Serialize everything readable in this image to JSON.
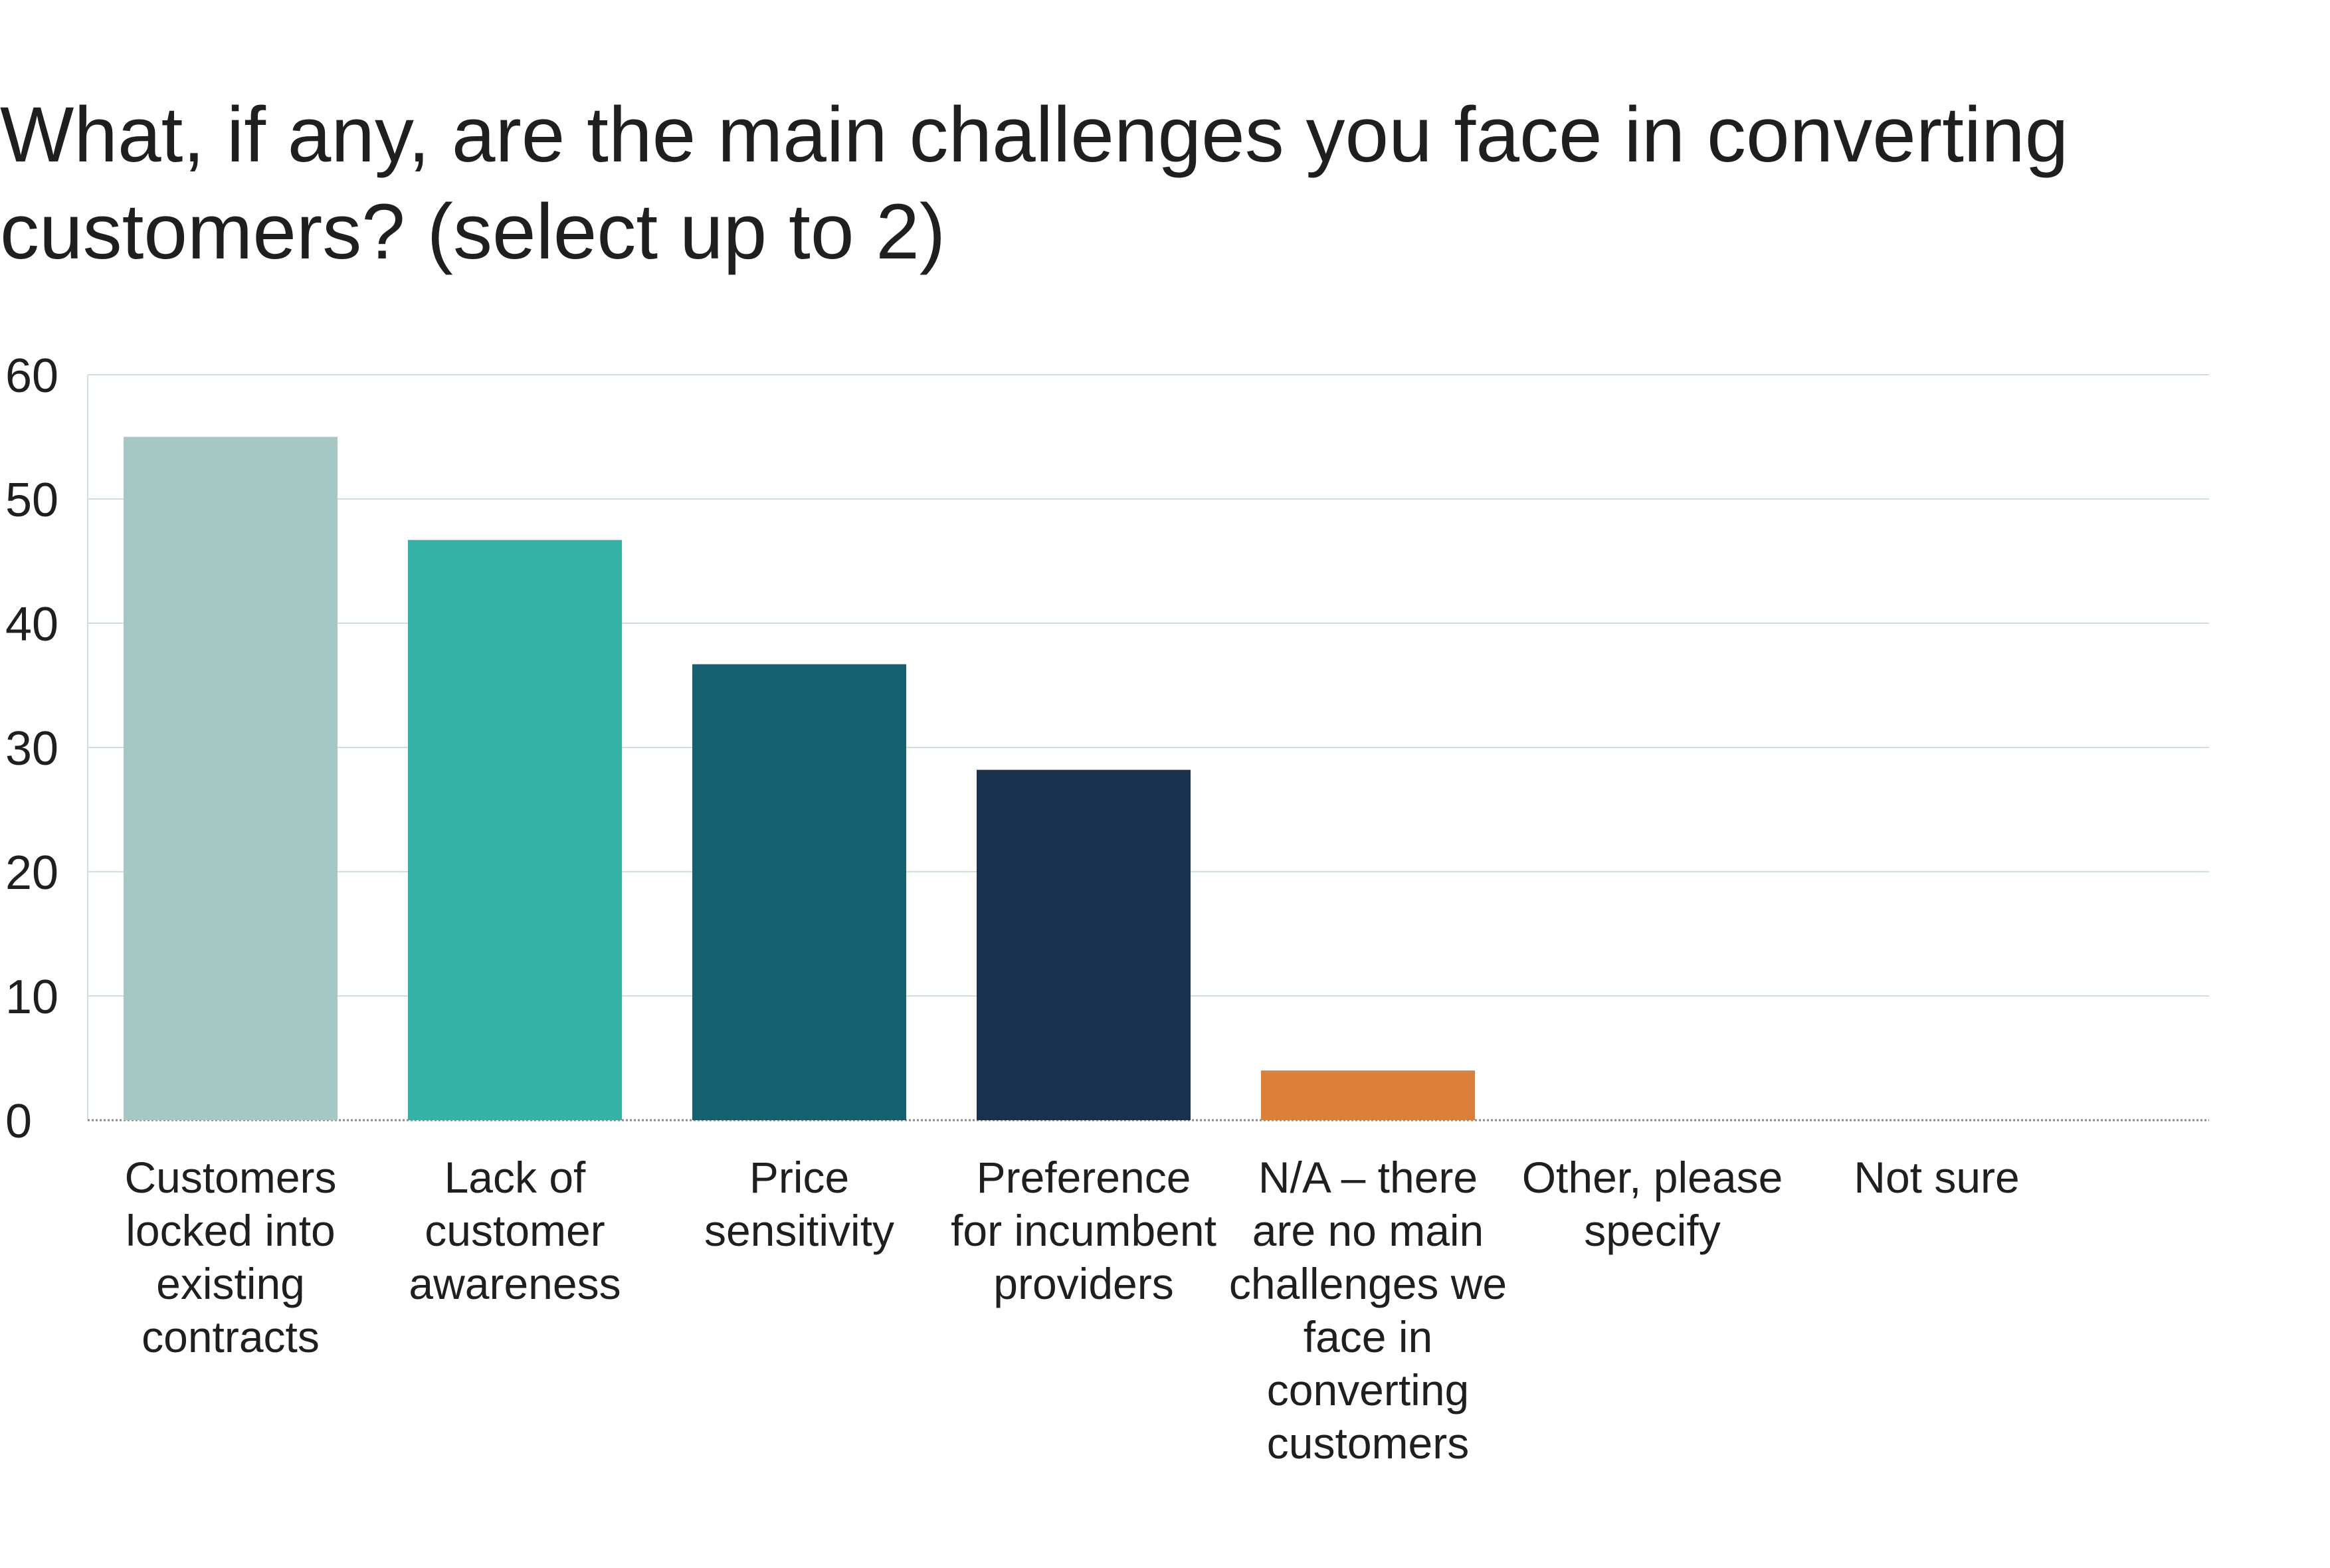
{
  "chart_data": {
    "type": "bar",
    "title": "What, if any, are the main challenges you face in converting customers? (select up to 2)",
    "xlabel": "",
    "ylabel": "",
    "ylim": [
      0,
      60
    ],
    "yticks": [
      0,
      10,
      20,
      30,
      40,
      50,
      60
    ],
    "grid": true,
    "legend": "none",
    "categories": [
      "Customers locked into existing contracts",
      "Lack of customer awareness",
      "Price sensitivity",
      "Preference for incumbent providers",
      "N/A – there are no main challenges we face in converting customers",
      "Other, please specify",
      "Not sure"
    ],
    "category_lines": [
      [
        "Customers",
        "locked into",
        "existing",
        "contracts"
      ],
      [
        "Lack of",
        "customer",
        "awareness"
      ],
      [
        "Price",
        "sensitivity"
      ],
      [
        "Preference",
        "for incumbent",
        "providers"
      ],
      [
        "N/A – there",
        "are no main",
        "challenges we",
        "face in",
        "converting",
        "customers"
      ],
      [
        "Other, please",
        "specify"
      ],
      [
        "Not sure"
      ]
    ],
    "values": [
      55,
      46.7,
      36.7,
      28.2,
      4,
      0,
      0
    ],
    "colors": [
      "#a5c8c5",
      "#33b2a5",
      "#156170",
      "#18324d",
      "#dc7f39",
      "#cccccc",
      "#cccccc"
    ]
  }
}
